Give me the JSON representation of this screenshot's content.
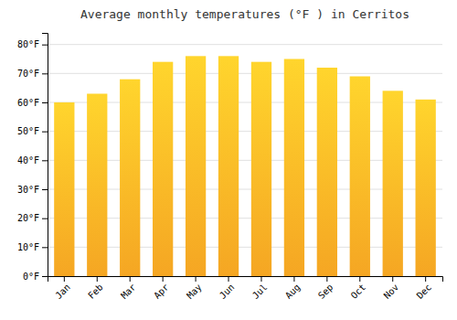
{
  "chart_data": {
    "type": "bar",
    "title": "Average monthly temperatures (°F ) in Cerritos",
    "categories": [
      "Jan",
      "Feb",
      "Mar",
      "Apr",
      "May",
      "Jun",
      "Jul",
      "Aug",
      "Sep",
      "Oct",
      "Nov",
      "Dec"
    ],
    "values": [
      60,
      63,
      68,
      74,
      76,
      76,
      74,
      75,
      72,
      69,
      64,
      61
    ],
    "color": "#F5A623",
    "ylim": [
      0,
      84
    ],
    "yticks": [
      {
        "value": 0,
        "label": "0°F"
      },
      {
        "value": 10,
        "label": "10°F"
      },
      {
        "value": 20,
        "label": "20°F"
      },
      {
        "value": 30,
        "label": "30°F"
      },
      {
        "value": 40,
        "label": "40°F"
      },
      {
        "value": 50,
        "label": "50°F"
      },
      {
        "value": 60,
        "label": "60°F"
      },
      {
        "value": 70,
        "label": "70°F"
      },
      {
        "value": 80,
        "label": "80°F"
      }
    ],
    "grid": true
  }
}
